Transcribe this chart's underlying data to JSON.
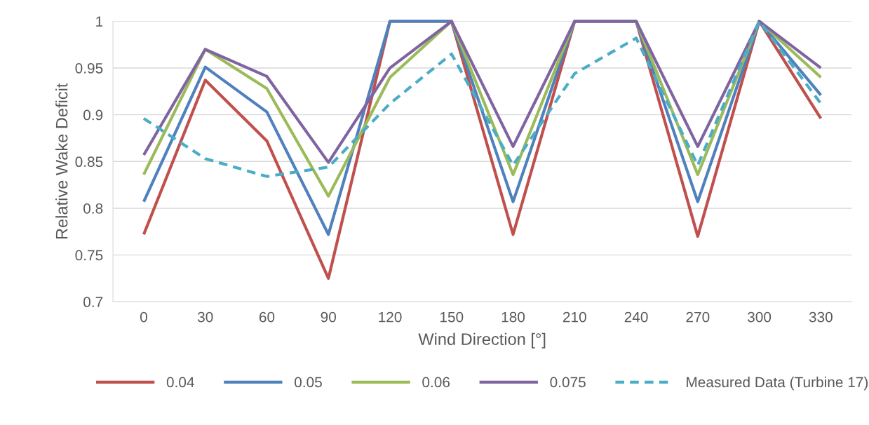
{
  "chart_data": {
    "type": "line",
    "xlabel": "Wind Direction [°]",
    "ylabel": "Relative Wake Deficit",
    "categories": [
      "0",
      "30",
      "60",
      "90",
      "120",
      "150",
      "180",
      "210",
      "240",
      "270",
      "300",
      "330"
    ],
    "series": [
      {
        "name": "0.04",
        "color": "#c0504d",
        "values": [
          0.772,
          0.937,
          0.872,
          0.725,
          1,
          1,
          0.772,
          1,
          1,
          0.77,
          1,
          0.896
        ]
      },
      {
        "name": "0.05",
        "color": "#4f81bd",
        "values": [
          0.807,
          0.951,
          0.903,
          0.772,
          1,
          1,
          0.807,
          1,
          1,
          0.807,
          1,
          0.921
        ]
      },
      {
        "name": "0.06",
        "color": "#9bbb59",
        "values": [
          0.836,
          0.97,
          0.928,
          0.813,
          0.94,
          1,
          0.836,
          1,
          1,
          0.836,
          1,
          0.94
        ]
      },
      {
        "name": "0.075",
        "color": "#8064a2",
        "values": [
          0.857,
          0.97,
          0.941,
          0.849,
          0.95,
          1,
          0.866,
          1,
          1,
          0.866,
          1,
          0.95
        ]
      },
      {
        "name": "Measured Data (Turbine 17)",
        "color": "#4bacc6",
        "line_style": "dashed",
        "values": [
          0.896,
          0.853,
          0.834,
          0.844,
          0.912,
          0.965,
          0.846,
          0.944,
          0.982,
          0.846,
          1.0,
          0.912
        ]
      }
    ],
    "ylim": [
      0.7,
      1
    ],
    "yticks": [
      0.7,
      0.75,
      0.8,
      0.85,
      0.9,
      0.95,
      1
    ],
    "grid": "y",
    "legend": "bottom",
    "line_style": "solid",
    "marker": "none"
  }
}
